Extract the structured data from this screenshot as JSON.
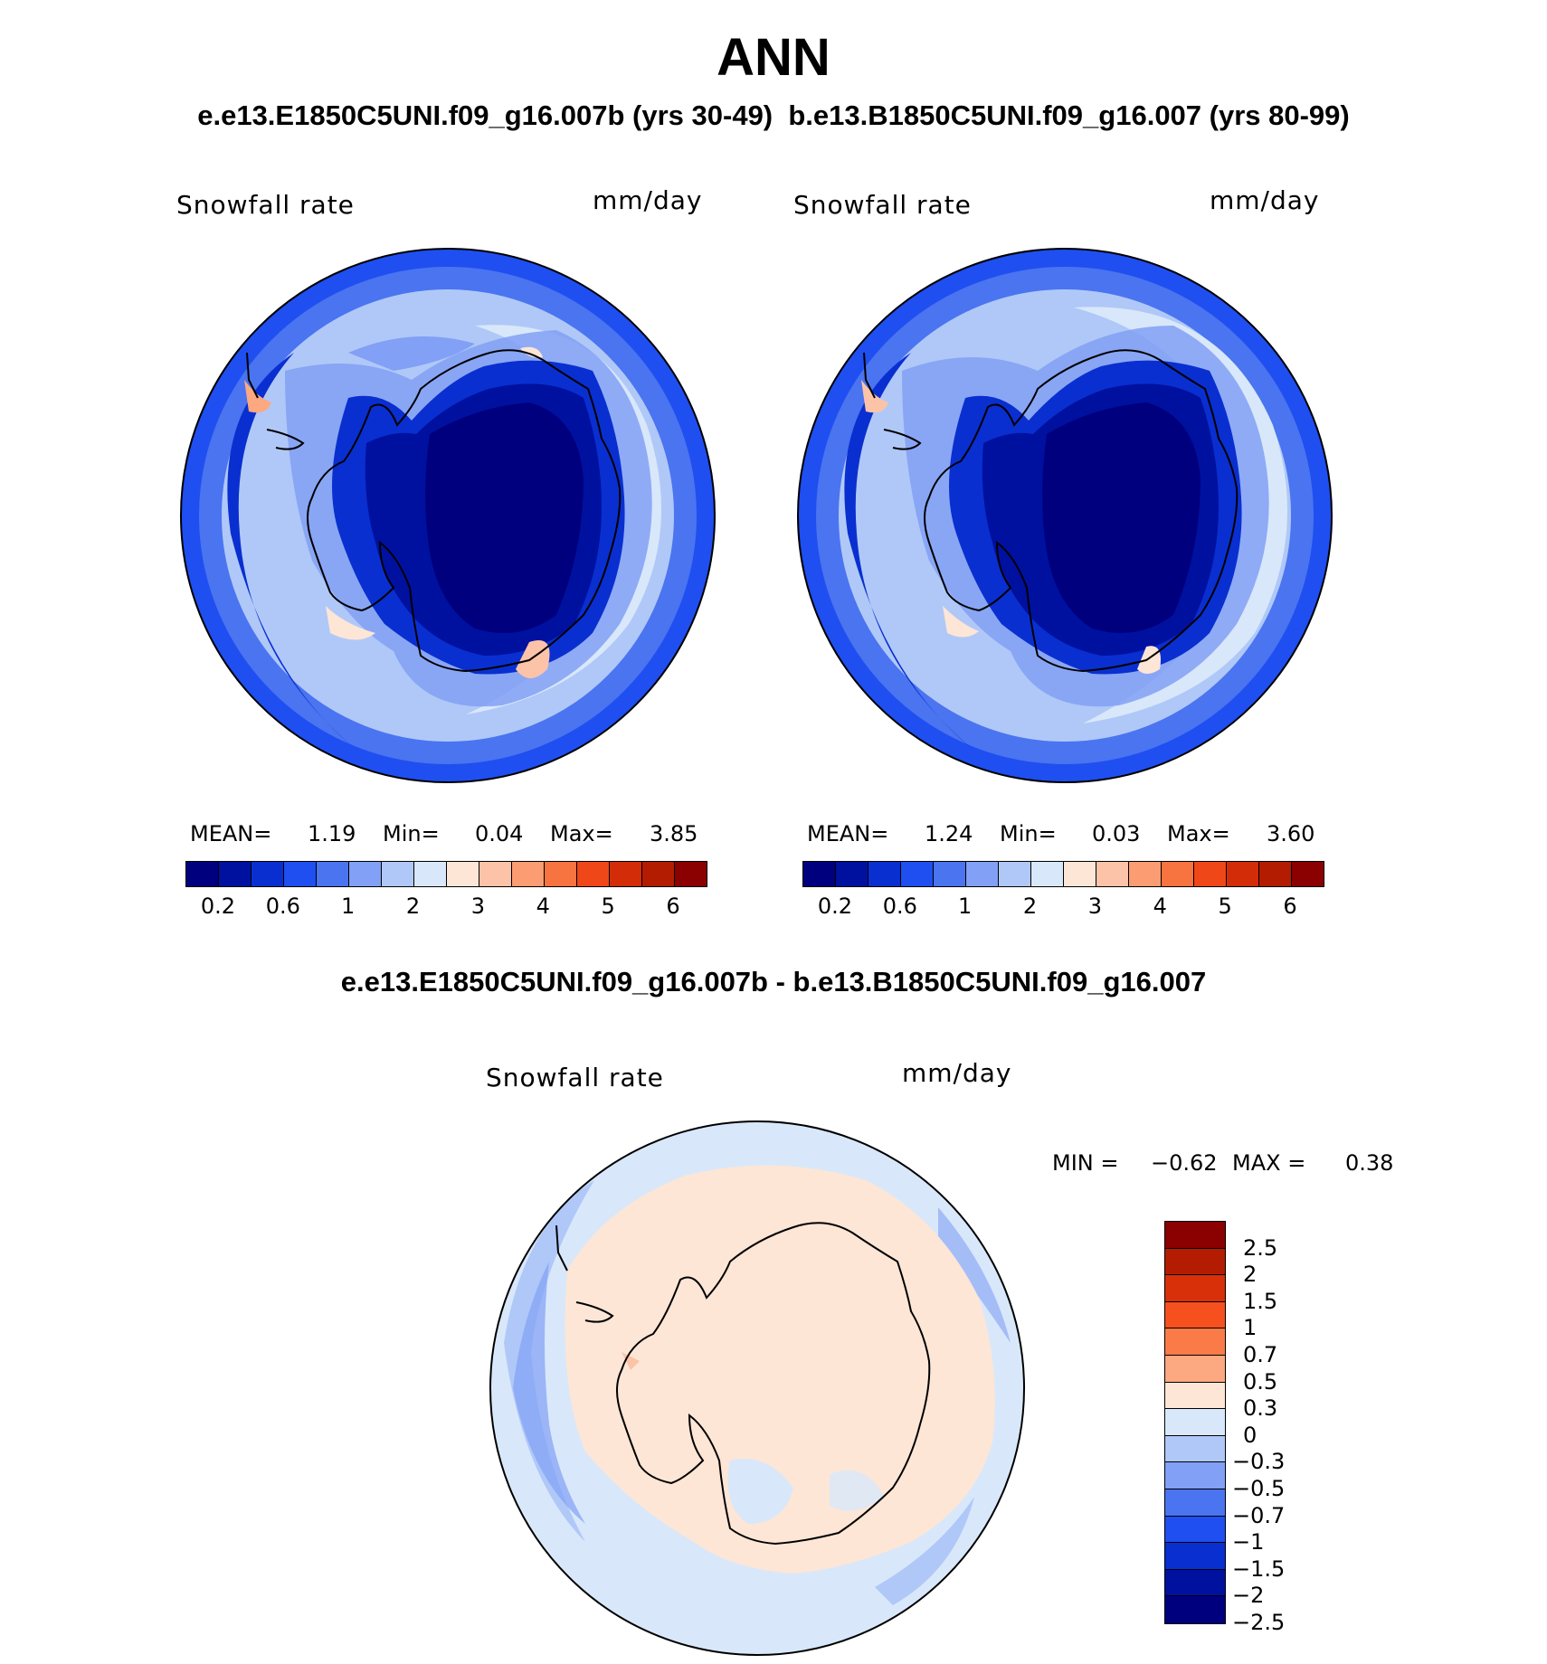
{
  "title": "ANN",
  "subtitle_left": "e.e13.E1850C5UNI.f09_g16.007b (yrs 30-49)",
  "subtitle_right": "b.e13.B1850C5UNI.f09_g16.007 (yrs 80-99)",
  "diff_title": "e.e13.E1850C5UNI.f09_g16.007b - b.e13.B1850C5UNI.f09_g16.007",
  "panels": [
    {
      "variable": "Snowfall rate",
      "units": "mm/day",
      "mean_label": "MEAN=",
      "mean": "1.19",
      "min_label": "Min=",
      "min": "0.04",
      "max_label": "Max=",
      "max": "3.85"
    },
    {
      "variable": "Snowfall rate",
      "units": "mm/day",
      "mean_label": "MEAN=",
      "mean": "1.24",
      "min_label": "Min=",
      "min": "0.03",
      "max_label": "Max=",
      "max": "3.60"
    }
  ],
  "diff_panel": {
    "variable": "Snowfall rate",
    "units": "mm/day",
    "min_label": "MIN =",
    "min": "−0.62",
    "max_label": "MAX =",
    "max": "0.38"
  },
  "colorbar_abs": {
    "colors": [
      "#00007f",
      "#0011a0",
      "#0a2fd0",
      "#1f4ff0",
      "#4a74f0",
      "#82a0f5",
      "#b0c8f8",
      "#d8e8fa",
      "#fde6d6",
      "#fcc3a8",
      "#fb9c72",
      "#f7733f",
      "#f04718",
      "#d22c08",
      "#b31c00",
      "#8b0000"
    ],
    "tick_labels": [
      "0.2",
      "0.6",
      "1",
      "2",
      "3",
      "4",
      "5",
      "6"
    ]
  },
  "colorbar_diff": {
    "colors": [
      "#8b0000",
      "#b31c00",
      "#d83008",
      "#f5501e",
      "#fb7b48",
      "#fca880",
      "#fde6d6",
      "#d8e8fa",
      "#b0c8f8",
      "#82a0f5",
      "#4a74f0",
      "#1f4ff0",
      "#0a2fd0",
      "#0011a0",
      "#00007f"
    ],
    "tick_labels": [
      "2.5",
      "2",
      "1.5",
      "1",
      "0.7",
      "0.5",
      "0.3",
      "0",
      "−0.3",
      "−0.5",
      "−0.7",
      "−1",
      "−1.5",
      "−2",
      "−2.5"
    ]
  }
}
